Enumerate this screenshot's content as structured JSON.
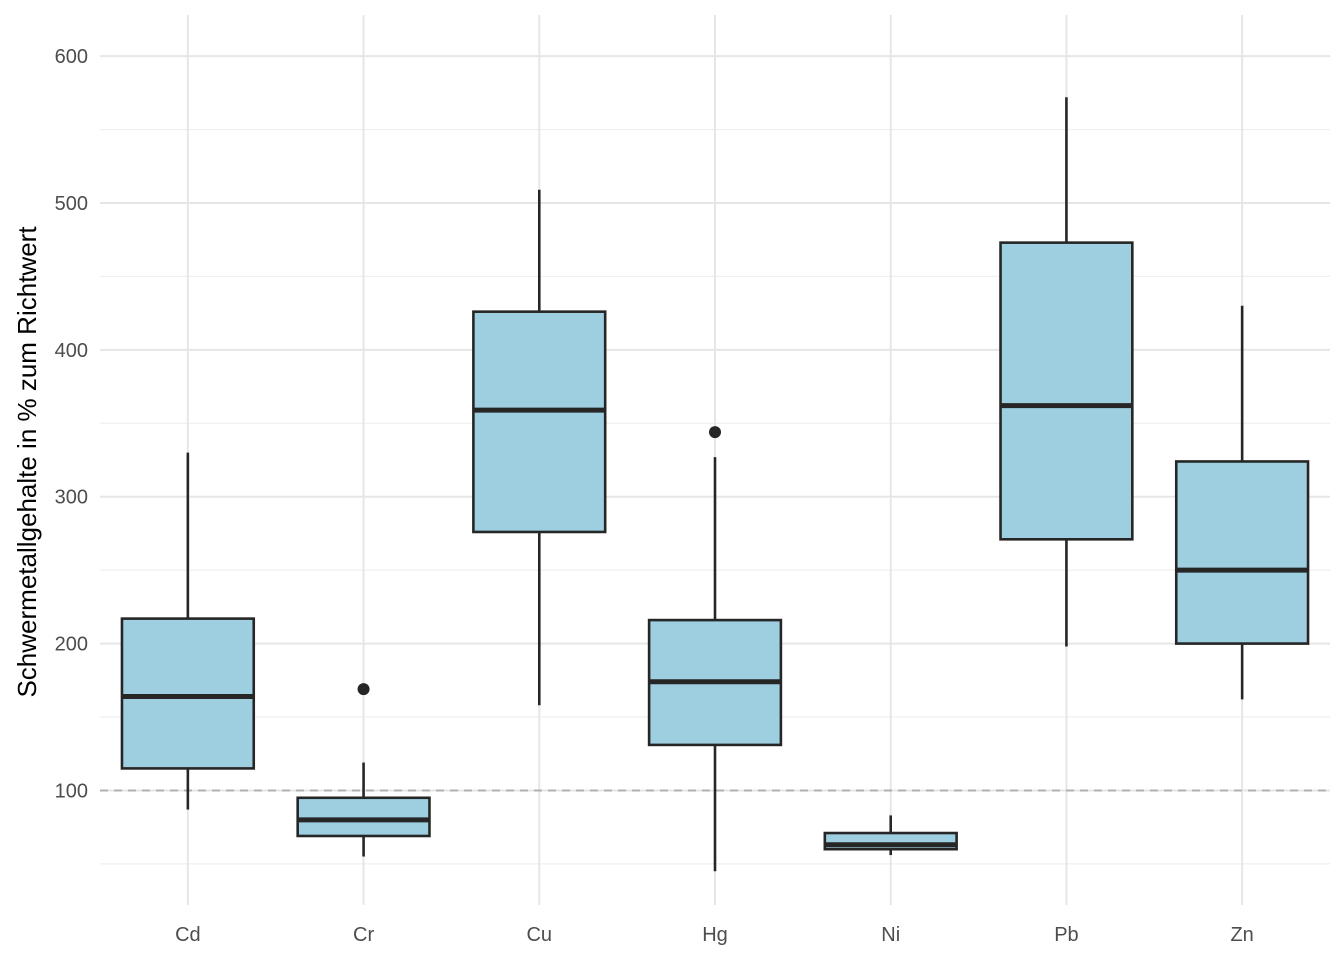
{
  "chart_data": {
    "type": "box",
    "title": "",
    "xlabel": "",
    "ylabel": "Schwermetallgehalte in % zum Richtwert",
    "ylim": [
      22,
      628
    ],
    "yticks": [
      100,
      200,
      300,
      400,
      500,
      600
    ],
    "grid": true,
    "reference_line": {
      "y": 100,
      "style": "dashed",
      "color": "#b0b0b0"
    },
    "box_fill": "#9ecfe1",
    "box_stroke": "#262626",
    "categories": [
      "Cd",
      "Cr",
      "Cu",
      "Hg",
      "Ni",
      "Pb",
      "Zn"
    ],
    "boxes": [
      {
        "name": "Cd",
        "whisker_low": 87,
        "q1": 115,
        "median": 164,
        "q3": 217,
        "whisker_high": 330,
        "outliers": []
      },
      {
        "name": "Cr",
        "whisker_low": 55,
        "q1": 69,
        "median": 80,
        "q3": 95,
        "whisker_high": 119,
        "outliers": [
          169
        ]
      },
      {
        "name": "Cu",
        "whisker_low": 158,
        "q1": 276,
        "median": 359,
        "q3": 426,
        "whisker_high": 509,
        "outliers": []
      },
      {
        "name": "Hg",
        "whisker_low": 45,
        "q1": 131,
        "median": 174,
        "q3": 216,
        "whisker_high": 327,
        "outliers": [
          344
        ]
      },
      {
        "name": "Ni",
        "whisker_low": 56,
        "q1": 60,
        "median": 63,
        "q3": 71,
        "whisker_high": 83,
        "outliers": []
      },
      {
        "name": "Pb",
        "whisker_low": 198,
        "q1": 271,
        "median": 362,
        "q3": 473,
        "whisker_high": 572,
        "outliers": []
      },
      {
        "name": "Zn",
        "whisker_low": 162,
        "q1": 200,
        "median": 250,
        "q3": 324,
        "whisker_high": 430,
        "outliers": []
      }
    ]
  }
}
